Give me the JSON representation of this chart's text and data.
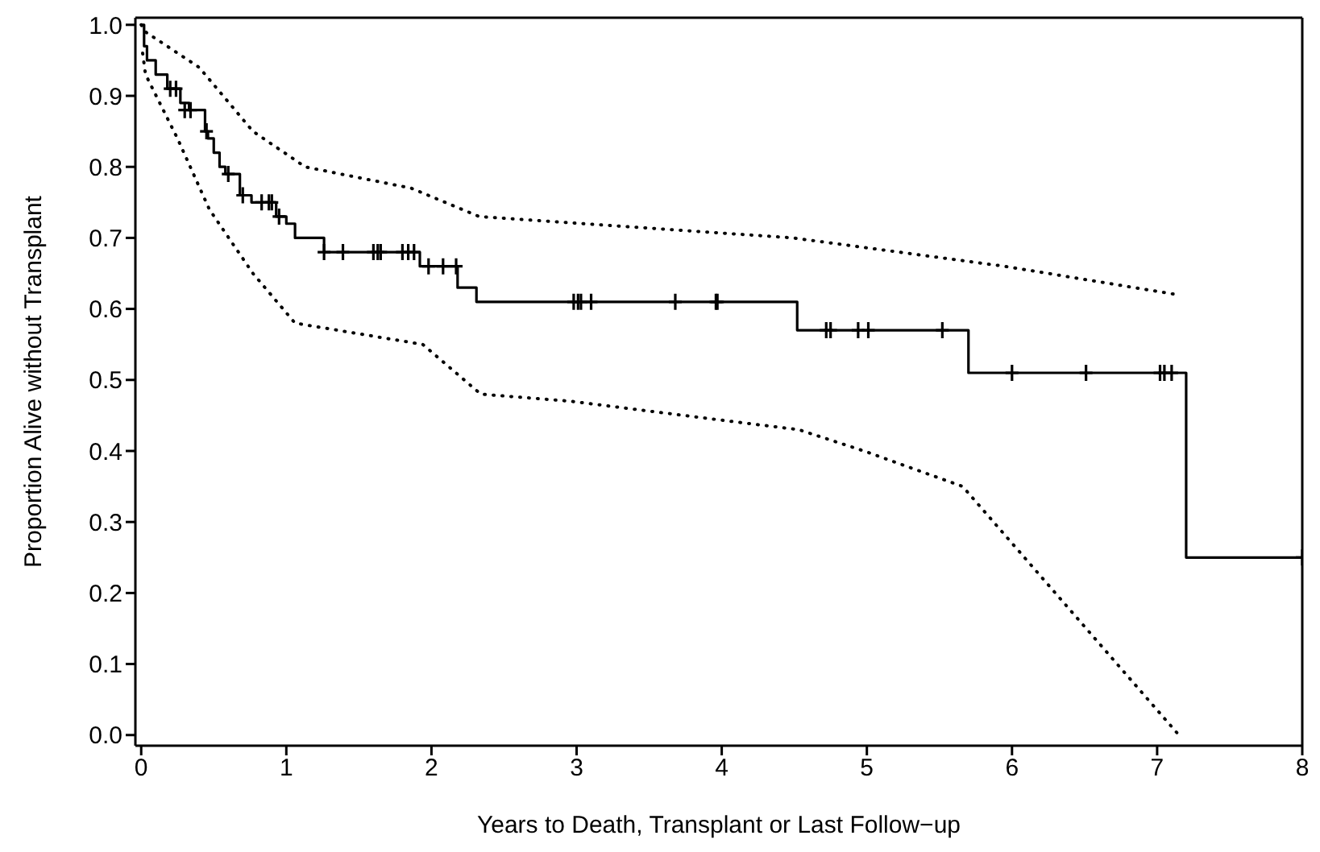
{
  "chart_data": {
    "type": "step",
    "xlabel": "Years to Death, Transplant or Last Follow−up",
    "ylabel": "Proportion Alive without Transplant",
    "xlim": [
      -0.04,
      8.0
    ],
    "xticks": [
      0,
      1,
      2,
      3,
      4,
      5,
      6,
      7,
      8
    ],
    "ylim": [
      -0.015,
      1.01
    ],
    "yticks": [
      {
        "value": 0,
        "label": "0.0"
      },
      0.1,
      0.2,
      0.3,
      0.4,
      0.5,
      0.6,
      0.7,
      0.8,
      0.9,
      {
        "value": 1,
        "label": "1.0"
      }
    ],
    "series": [
      {
        "color": "#000000",
        "line_style": "solid",
        "marker": "none",
        "x": [
          0,
          0.02,
          0.04,
          0.1,
          0.18,
          0.27,
          0.33,
          0.44,
          0.46,
          0.5,
          0.54,
          0.58,
          0.68,
          0.76,
          0.93,
          1.0,
          1.06,
          1.26,
          1.92,
          2.18,
          2.31,
          4.52,
          5.7,
          7.2,
          8.0
        ],
        "values": [
          1.0,
          0.97,
          0.95,
          0.93,
          0.91,
          0.89,
          0.88,
          0.85,
          0.84,
          0.82,
          0.8,
          0.79,
          0.76,
          0.75,
          0.73,
          0.72,
          0.7,
          0.68,
          0.66,
          0.63,
          0.61,
          0.57,
          0.51,
          0.25,
          0.25
        ]
      },
      {
        "type": "line",
        "color": "#000000",
        "line_style": "dotted",
        "marker": "none",
        "x": [
          0,
          0.03,
          0.4,
          0.77,
          1.13,
          1.86,
          2.33,
          4.49,
          5.95,
          7.14
        ],
        "values": [
          1.0,
          0.99,
          0.94,
          0.85,
          0.8,
          0.77,
          0.73,
          0.7,
          0.66,
          0.62
        ]
      },
      {
        "type": "line",
        "color": "#000000",
        "line_style": "dotted",
        "marker": "none",
        "x": [
          0.01,
          0.03,
          0.25,
          0.47,
          0.77,
          1.06,
          1.94,
          2.34,
          2.96,
          4.13,
          4.53,
          4.98,
          5.66,
          7.15
        ],
        "values": [
          0.96,
          0.93,
          0.84,
          0.74,
          0.65,
          0.58,
          0.55,
          0.48,
          0.47,
          0.44,
          0.43,
          0.4,
          0.35,
          0.0
        ]
      },
      {
        "type": "scatter",
        "color": "#000000",
        "marker": "cross",
        "x": [
          0.2,
          0.24,
          0.3,
          0.34,
          0.45,
          0.6,
          0.7,
          0.83,
          0.88,
          0.9,
          0.95,
          1.26,
          1.39,
          1.6,
          1.63,
          1.65,
          1.8,
          1.84,
          1.88,
          1.98,
          2.08,
          2.17,
          2.98,
          3.01,
          3.03,
          3.1,
          3.68,
          3.96,
          3.97,
          4.72,
          4.75,
          4.94,
          5.01,
          5.52,
          6.0,
          6.51,
          7.02,
          7.05,
          7.1,
          8.0
        ],
        "values": [
          0.91,
          0.91,
          0.88,
          0.88,
          0.85,
          0.79,
          0.76,
          0.75,
          0.75,
          0.75,
          0.73,
          0.68,
          0.68,
          0.68,
          0.68,
          0.68,
          0.68,
          0.68,
          0.68,
          0.66,
          0.66,
          0.66,
          0.61,
          0.61,
          0.61,
          0.61,
          0.61,
          0.61,
          0.61,
          0.57,
          0.57,
          0.57,
          0.57,
          0.57,
          0.51,
          0.51,
          0.51,
          0.51,
          0.51,
          0.25
        ]
      }
    ]
  }
}
